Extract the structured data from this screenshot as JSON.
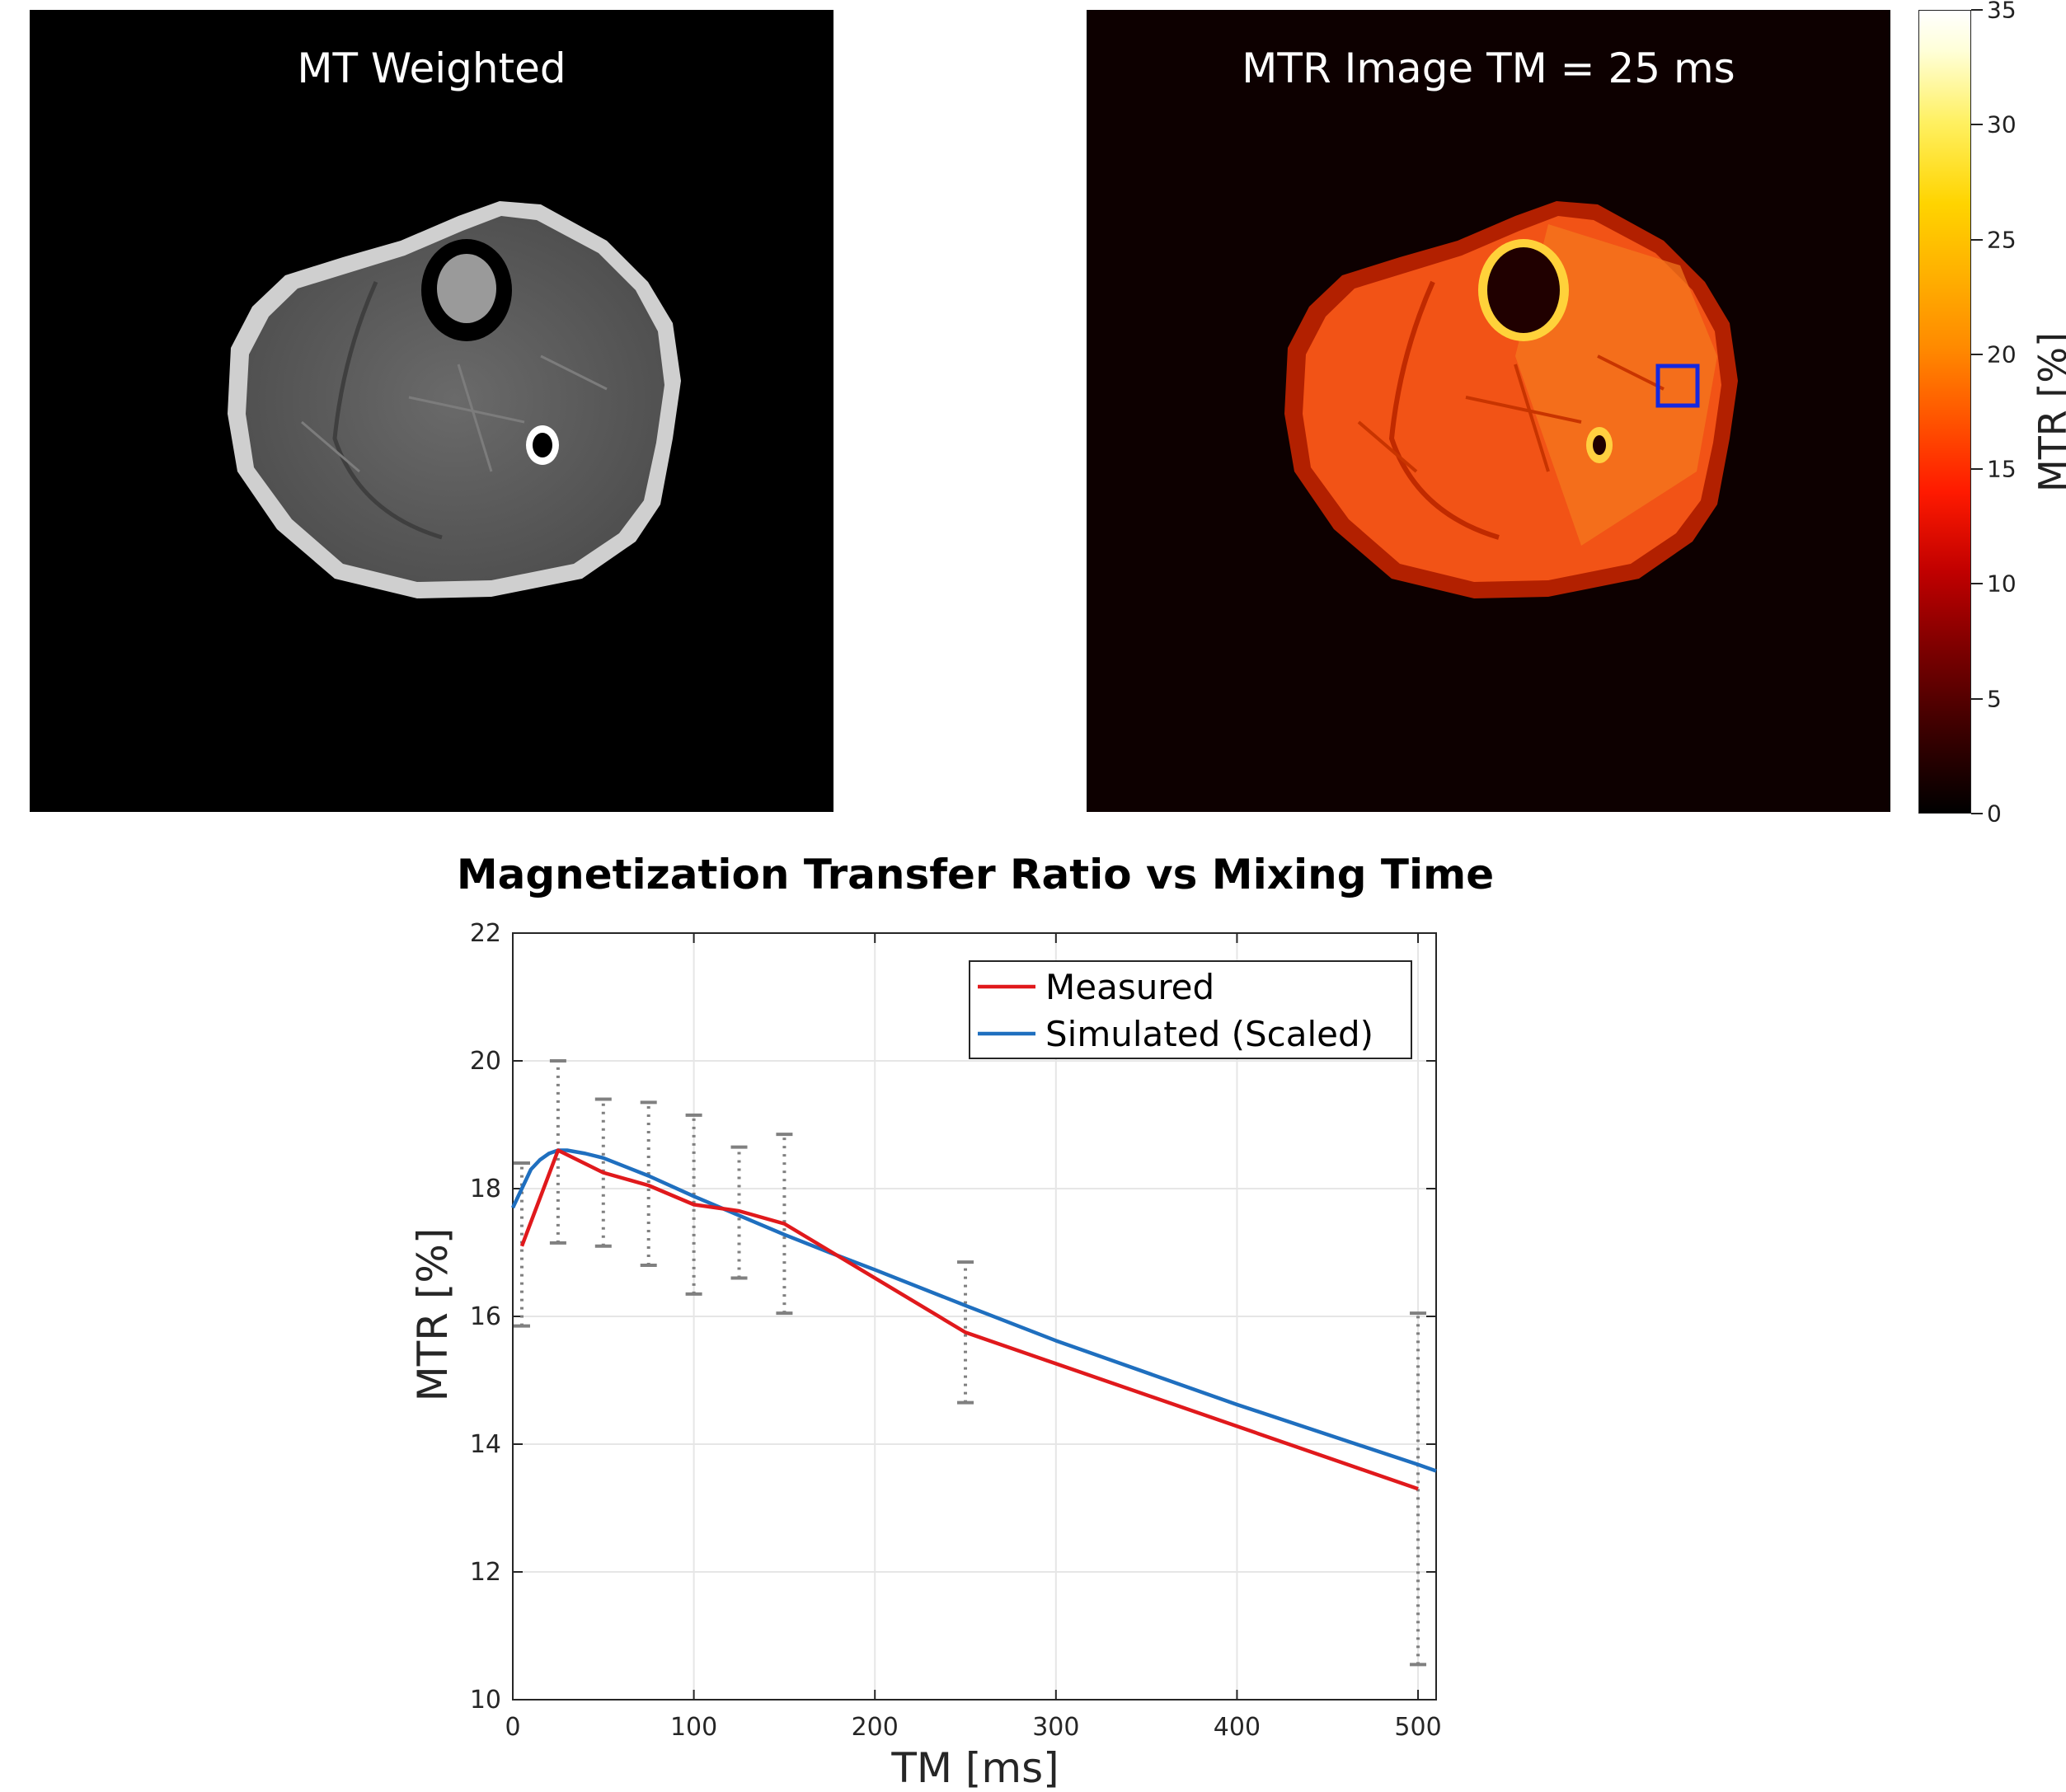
{
  "panels": {
    "left_title": "MT Weighted",
    "right_title": "MTR Image TM = 25 ms"
  },
  "colorbar": {
    "label": "MTR [%]",
    "min": 0,
    "max": 35,
    "ticks": [
      "0",
      "5",
      "10",
      "15",
      "20",
      "25",
      "30",
      "35"
    ],
    "colormap": "hot"
  },
  "colors": {
    "measured": "#e0191c",
    "simulated": "#1f6fbf",
    "errorbar": "#808080",
    "roi_box": "#1428e0"
  },
  "chart_data": {
    "type": "line",
    "title": "Magnetization Transfer Ratio vs Mixing Time",
    "xlabel": "TM [ms]",
    "ylabel": "MTR [%]",
    "xlim": [
      0,
      510
    ],
    "ylim": [
      10,
      22
    ],
    "xticks": [
      0,
      100,
      200,
      300,
      400,
      500
    ],
    "yticks": [
      10,
      12,
      14,
      16,
      18,
      20,
      22
    ],
    "grid": true,
    "legend_position": "top-right",
    "series": [
      {
        "name": "Measured",
        "x": [
          5,
          25,
          50,
          75,
          100,
          125,
          150,
          250,
          500
        ],
        "y": [
          17.1,
          18.6,
          18.25,
          18.05,
          17.75,
          17.65,
          17.45,
          15.75,
          13.3
        ],
        "err_low": [
          15.85,
          17.15,
          17.1,
          16.8,
          16.35,
          16.6,
          16.05,
          14.65,
          10.55
        ],
        "err_high": [
          18.4,
          20.0,
          19.4,
          19.35,
          19.15,
          18.65,
          18.85,
          16.85,
          16.05
        ]
      },
      {
        "name": "Simulated (Scaled)",
        "x": [
          0,
          5,
          10,
          15,
          20,
          25,
          30,
          40,
          50,
          75,
          100,
          125,
          150,
          175,
          200,
          250,
          300,
          400,
          500,
          510
        ],
        "y": [
          17.7,
          18.0,
          18.3,
          18.45,
          18.55,
          18.6,
          18.6,
          18.55,
          18.48,
          18.2,
          17.88,
          17.58,
          17.28,
          17.0,
          16.73,
          16.17,
          15.62,
          14.62,
          13.68,
          13.58
        ]
      }
    ]
  }
}
